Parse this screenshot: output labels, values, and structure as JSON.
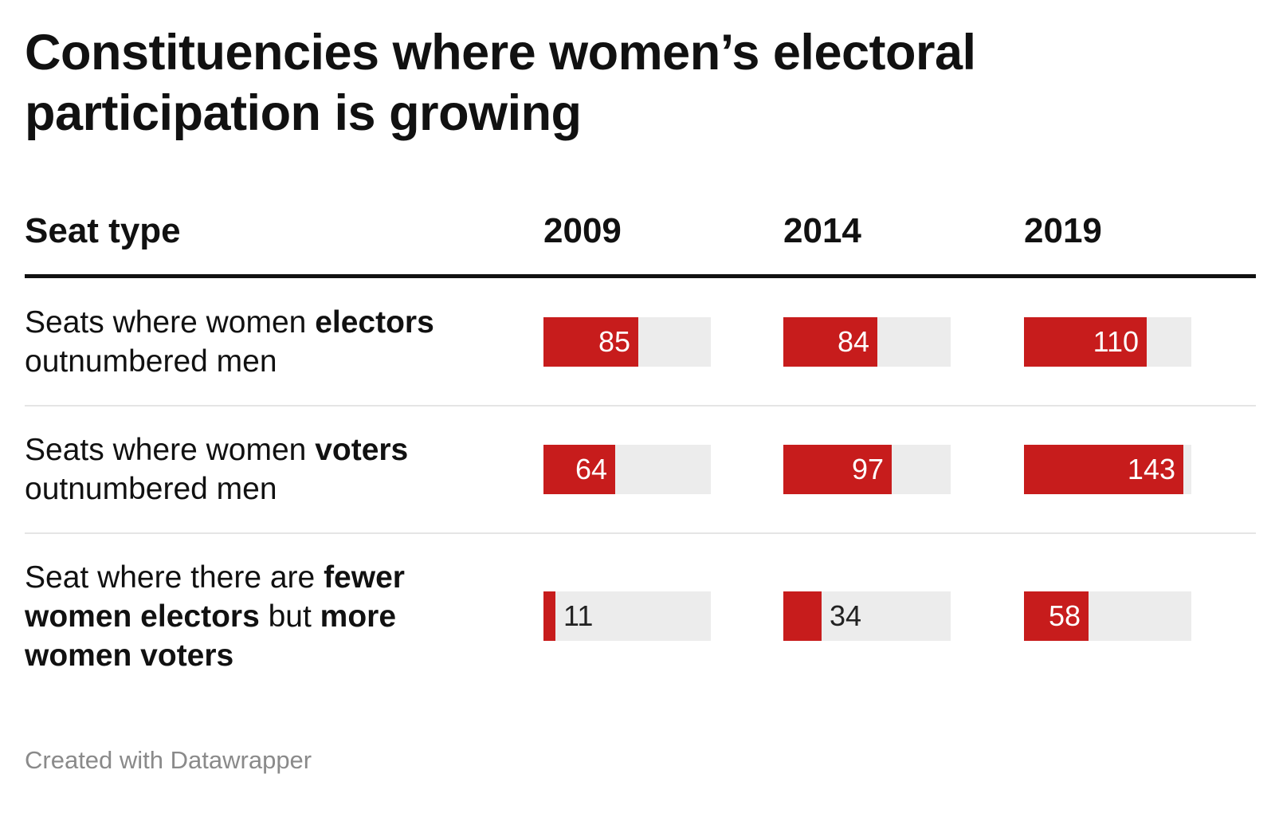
{
  "title": "Constituencies where women’s electoral participation is growing",
  "footer": "Created with Datawrapper",
  "colors": {
    "bar": "#c71c1c",
    "track": "#ececec",
    "header_rule": "#111111",
    "row_rule": "#e5e5e5",
    "footer_text": "#8a8a8a"
  },
  "chart_data": {
    "type": "table",
    "columns": [
      "Seat type",
      "2009",
      "2014",
      "2019"
    ],
    "bar_scale_max": 150,
    "rows": [
      {
        "label_parts": [
          {
            "text": "Seats where women ",
            "bold": false
          },
          {
            "text": "electors",
            "bold": true
          },
          {
            "text": " outnumbered men",
            "bold": false
          }
        ],
        "values": [
          85,
          84,
          110
        ]
      },
      {
        "label_parts": [
          {
            "text": "Seats where women ",
            "bold": false
          },
          {
            "text": "voters",
            "bold": true
          },
          {
            "text": " outnumbered men",
            "bold": false
          }
        ],
        "values": [
          64,
          97,
          143
        ]
      },
      {
        "label_parts": [
          {
            "text": "Seat where there are ",
            "bold": false
          },
          {
            "text": "fewer women electors",
            "bold": true
          },
          {
            "text": " but ",
            "bold": false
          },
          {
            "text": "more women voters",
            "bold": true
          }
        ],
        "values": [
          11,
          34,
          58
        ]
      }
    ]
  }
}
